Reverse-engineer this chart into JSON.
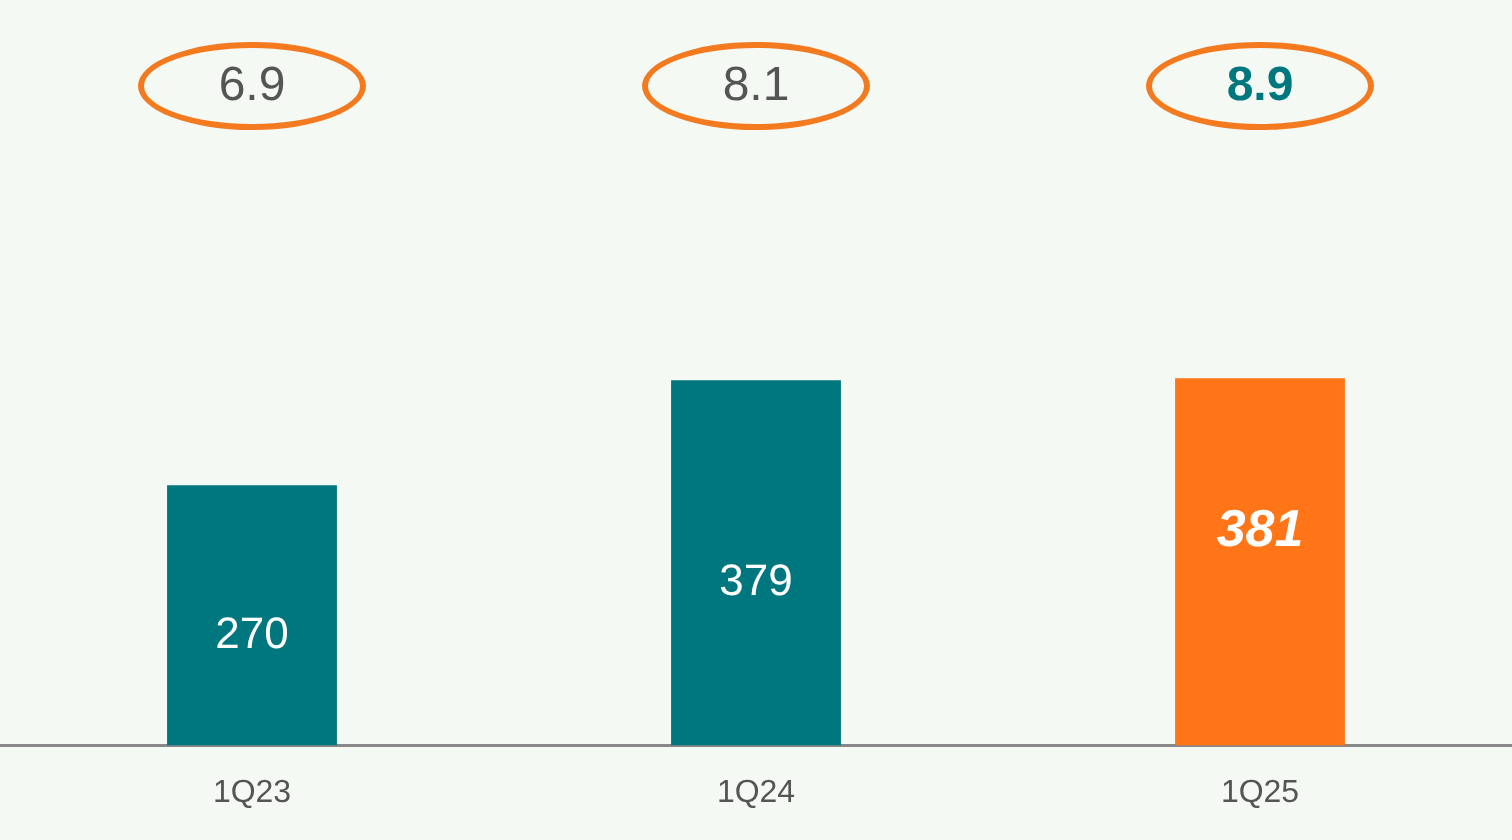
{
  "chart_data": {
    "type": "bar",
    "categories": [
      "1Q23",
      "1Q24",
      "1Q25"
    ],
    "values": [
      270,
      379,
      381
    ],
    "colors": [
      "#00777e",
      "#00777e",
      "#ff7518"
    ],
    "data_labels": true,
    "annotations": [
      "6.9",
      "8.1",
      "8.9"
    ],
    "grid": false,
    "legend": false
  }
}
